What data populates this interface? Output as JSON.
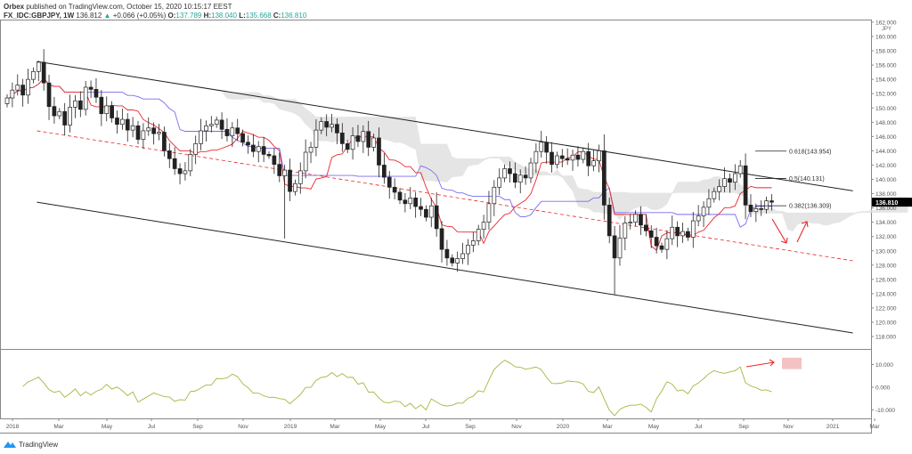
{
  "header": {
    "publisher": "Orbex",
    "published_text": "published on TradingView.com, October 15, 2020 10:15:17 EEST",
    "symbol": "FX_IDC:GBPJPY, 1W",
    "last": "136.812",
    "change": "+0.066 (+0.05%)",
    "o_label": "O:",
    "o": "137.789",
    "h_label": "H:",
    "h": "138.040",
    "l_label": "L:",
    "l": "135.668",
    "c_label": "C:",
    "c": "136.810",
    "up_icon": "triangle-up-icon"
  },
  "logo": {
    "text": "TradingView",
    "icon": "tradingview-logo-icon"
  },
  "colors": {
    "up_body": "#ffffff",
    "down_body": "#222222",
    "tenkan": "#e8282b",
    "kijun": "#7b6cf0",
    "cloud": "#e0e0e0",
    "oscillator": "#a9b53f",
    "annotation": "#e8282b",
    "last_price_bg": "#000000"
  },
  "chart_data": {
    "type": "candlestick",
    "timeframe": "1W",
    "currency": "JPY",
    "first_week": "2018-01-01",
    "closes": [
      151.4,
      152.5,
      153.2,
      151.8,
      154.0,
      155.1,
      156.4,
      153.5,
      150.2,
      148.9,
      149.5,
      147.6,
      150.1,
      151.0,
      149.8,
      152.9,
      152.6,
      151.5,
      149.2,
      150.3,
      148.6,
      147.7,
      148.4,
      146.9,
      147.5,
      145.6,
      146.8,
      147.2,
      146.4,
      146.6,
      144.0,
      142.9,
      141.5,
      140.8,
      141.2,
      143.5,
      145.0,
      146.8,
      147.5,
      147.7,
      148.3,
      147.0,
      146.1,
      147.2,
      146.4,
      145.2,
      144.8,
      143.9,
      144.6,
      143.5,
      143.3,
      142.1,
      140.5,
      141.3,
      138.3,
      139.4,
      141.2,
      143.8,
      144.5,
      146.9,
      148.1,
      147.3,
      147.7,
      146.5,
      145.0,
      144.2,
      146.1,
      145.3,
      146.7,
      144.5,
      145.8,
      142.0,
      140.3,
      138.9,
      138.2,
      137.1,
      136.6,
      137.4,
      136.2,
      135.8,
      134.7,
      136.3,
      133.1,
      130.2,
      129.0,
      128.3,
      128.9,
      129.6,
      130.8,
      131.4,
      133.0,
      134.0,
      136.6,
      138.9,
      140.2,
      141.5,
      140.8,
      139.6,
      140.6,
      140.2,
      142.3,
      143.9,
      145.2,
      143.8,
      142.1,
      143.3,
      142.9,
      142.7,
      143.4,
      142.8,
      143.9,
      141.9,
      142.6,
      144.0,
      136.4,
      132.1,
      129.0,
      131.8,
      133.9,
      134.0,
      135.1,
      133.6,
      132.8,
      131.9,
      130.7,
      130.2,
      131.7,
      133.3,
      132.1,
      132.7,
      131.9,
      134.2,
      134.9,
      136.1,
      137.3,
      138.3,
      139.0,
      140.1,
      139.6,
      140.8,
      141.9,
      136.4,
      135.5,
      135.9,
      135.8,
      137.0,
      136.81
    ],
    "notable_wicks": [
      {
        "week": 53,
        "low": 131.7
      },
      {
        "week": 116,
        "low": 123.9
      },
      {
        "week": 140,
        "high": 142.7
      },
      {
        "week": 6,
        "high": 156.6
      }
    ],
    "last_price": "136.810",
    "price_axis": {
      "min": 116,
      "max": 162,
      "ticks": [
        "162.000",
        "160.000",
        "158.000",
        "156.000",
        "154.000",
        "152.000",
        "150.000",
        "148.000",
        "146.000",
        "144.000",
        "142.000",
        "140.000",
        "138.000",
        "136.000",
        "134.000",
        "132.000",
        "130.000",
        "128.000",
        "126.000",
        "124.000",
        "122.000",
        "120.000",
        "118.000"
      ]
    },
    "time_axis": {
      "ticks": [
        "2018",
        "Mar",
        "May",
        "Jul",
        "Sep",
        "Nov",
        "2019",
        "Mar",
        "May",
        "Jul",
        "Sep",
        "Nov",
        "2020",
        "Mar",
        "May",
        "Jul",
        "Sep",
        "Nov",
        "2021",
        "Mar"
      ]
    },
    "indicators": [
      "Ichimoku Cloud",
      "Tenkan-sen",
      "Kijun-sen",
      "Oscillator"
    ],
    "trendlines": [
      {
        "style": "solid",
        "color": "#222222",
        "from": {
          "week": 5.7,
          "price": 156.5
        },
        "to": {
          "week": 161.5,
          "price": 138.4
        }
      },
      {
        "style": "solid",
        "color": "#222222",
        "from": {
          "week": 5.7,
          "price": 136.8
        },
        "to": {
          "week": 161.5,
          "price": 118.5
        }
      },
      {
        "style": "dashed",
        "color": "#e8282b",
        "from": {
          "week": 5.7,
          "price": 146.8
        },
        "to": {
          "week": 161.5,
          "price": 128.6
        }
      }
    ],
    "fib_levels": [
      {
        "label": "0.618(143.954)",
        "price": 143.954
      },
      {
        "label": "0.5(140.131)",
        "price": 140.131
      },
      {
        "label": "0.382(136.309)",
        "price": 136.309
      }
    ],
    "oscillator_axis": {
      "ticks": [
        "10.000",
        "0.000",
        "-10.000"
      ]
    },
    "annotations": {
      "price_arrows": "down then up",
      "oscillator_arrow": "right",
      "oscillator_box": [
        8,
        13
      ]
    }
  }
}
